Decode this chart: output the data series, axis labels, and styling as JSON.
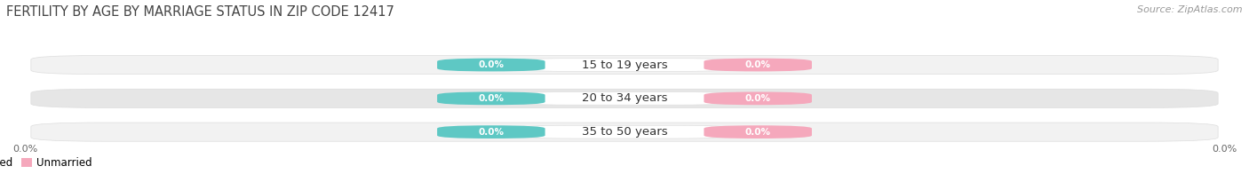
{
  "title": "FERTILITY BY AGE BY MARRIAGE STATUS IN ZIP CODE 12417",
  "source": "Source: ZipAtlas.com",
  "categories": [
    "15 to 19 years",
    "20 to 34 years",
    "35 to 50 years"
  ],
  "married_values": [
    0.0,
    0.0,
    0.0
  ],
  "unmarried_values": [
    0.0,
    0.0,
    0.0
  ],
  "married_color": "#5ec8c4",
  "unmarried_color": "#f5a8bc",
  "label_married": "Married",
  "label_unmarried": "Unmarried",
  "row_bg_color_light": "#f2f2f2",
  "row_bg_color_dark": "#e6e6e6",
  "background_color": "#ffffff",
  "title_fontsize": 10.5,
  "source_fontsize": 8,
  "category_fontsize": 9.5,
  "value_fontsize": 7.5,
  "tick_label": "0.0%",
  "tick_fontsize": 8
}
